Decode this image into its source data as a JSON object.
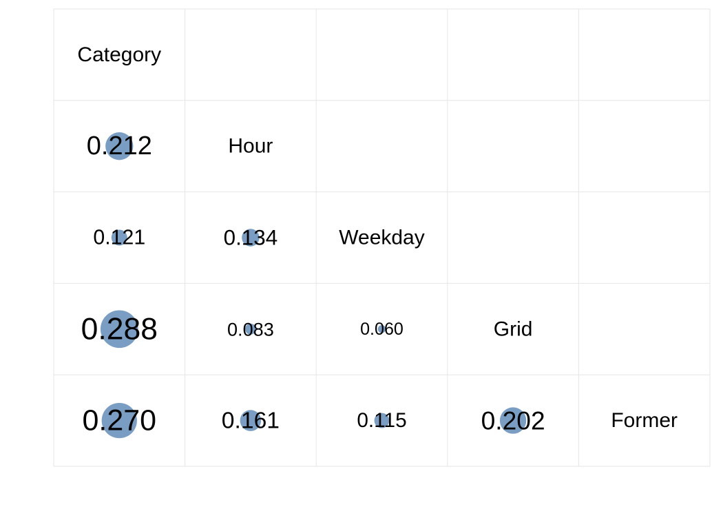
{
  "chart_data": {
    "type": "heatmap",
    "variables": [
      "Category",
      "Hour",
      "Weekday",
      "Grid",
      "Former"
    ],
    "cells": [
      {
        "row": 1,
        "col": 0,
        "label": "0.212",
        "value": 0.212
      },
      {
        "row": 2,
        "col": 0,
        "label": "0.121",
        "value": 0.121
      },
      {
        "row": 2,
        "col": 1,
        "label": "0.134",
        "value": 0.134
      },
      {
        "row": 3,
        "col": 0,
        "label": "0.288",
        "value": 0.288
      },
      {
        "row": 3,
        "col": 1,
        "label": "0.083",
        "value": 0.083
      },
      {
        "row": 3,
        "col": 2,
        "label": "0.060",
        "value": 0.06
      },
      {
        "row": 4,
        "col": 0,
        "label": "0.270",
        "value": 0.27
      },
      {
        "row": 4,
        "col": 1,
        "label": "0.161",
        "value": 0.161
      },
      {
        "row": 4,
        "col": 2,
        "label": "0.115",
        "value": 0.115
      },
      {
        "row": 4,
        "col": 3,
        "label": "0.202",
        "value": 0.202
      }
    ],
    "grid": true,
    "legend": "none"
  },
  "colors": {
    "marker": "#7a9ec3",
    "grid": "#e6e6e6",
    "text": "#000000"
  }
}
